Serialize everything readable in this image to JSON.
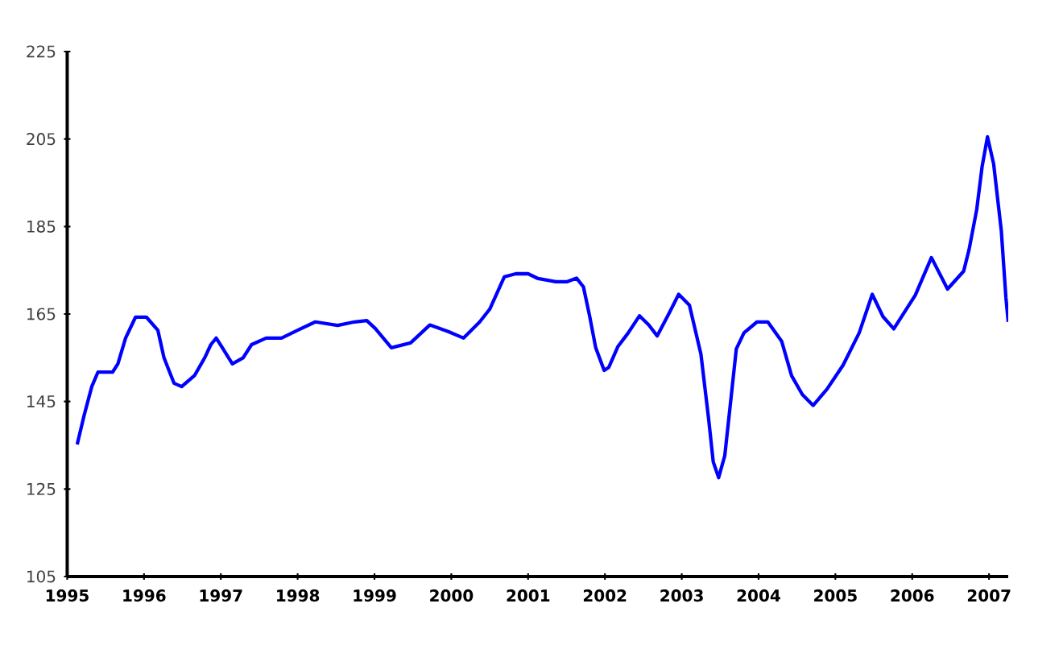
{
  "chart_data": {
    "type": "line",
    "xlim": [
      1995,
      2007.25
    ],
    "ylim": [
      105,
      225
    ],
    "xticks": [
      1995,
      1996,
      1997,
      1998,
      1999,
      2000,
      2001,
      2002,
      2003,
      2004,
      2005,
      2006,
      2007
    ],
    "yticks": [
      105,
      125,
      145,
      165,
      185,
      205,
      225
    ],
    "grid": false,
    "marker": "none",
    "line_style": "solid",
    "series": [
      {
        "color": "#0000ff",
        "x": [
          1995.13,
          1995.22,
          1995.32,
          1995.4,
          1995.59,
          1995.66,
          1995.76,
          1995.89,
          1996.03,
          1996.18,
          1996.26,
          1996.39,
          1996.49,
          1996.66,
          1996.79,
          1996.87,
          1996.94,
          1997.02,
          1997.15,
          1997.29,
          1997.4,
          1997.59,
          1997.79,
          1998.0,
          1998.23,
          1998.52,
          1998.74,
          1998.9,
          1999.01,
          1999.22,
          1999.47,
          1999.72,
          1999.96,
          2000.16,
          2000.37,
          2000.5,
          2000.69,
          2000.84,
          2001.0,
          2001.13,
          2001.36,
          2001.51,
          2001.63,
          2001.72,
          2001.8,
          2001.88,
          2001.99,
          2002.05,
          2002.17,
          2002.3,
          2002.45,
          2002.57,
          2002.68,
          2002.83,
          2002.96,
          2003.1,
          2003.25,
          2003.35,
          2003.41,
          2003.48,
          2003.56,
          2003.62,
          2003.71,
          2003.81,
          2003.98,
          2004.12,
          2004.3,
          2004.43,
          2004.57,
          2004.71,
          2004.89,
          2005.1,
          2005.31,
          2005.48,
          2005.62,
          2005.76,
          2006.04,
          2006.25,
          2006.46,
          2006.67,
          2006.74,
          2006.84,
          2006.91,
          2006.98,
          2007.06,
          2007.16,
          2007.22,
          2007.25
        ],
        "values": [
          135.2,
          141.8,
          148.4,
          151.7,
          151.7,
          153.6,
          159.5,
          164.3,
          164.3,
          161.3,
          155,
          149.2,
          148.4,
          151,
          155,
          158,
          159.5,
          157.3,
          153.6,
          155,
          158,
          159.5,
          159.5,
          161.3,
          163.2,
          162.4,
          163.2,
          163.5,
          161.7,
          157.3,
          158.4,
          162.5,
          161,
          159.5,
          163.2,
          166.1,
          173.5,
          174.2,
          174.2,
          173.1,
          172.4,
          172.4,
          173.2,
          171.2,
          164.6,
          157.3,
          152.1,
          152.8,
          157.6,
          160.6,
          164.6,
          162.5,
          160,
          165,
          169.5,
          167,
          155.8,
          141,
          131.2,
          127.6,
          132.6,
          142.3,
          157,
          160.7,
          163.2,
          163.2,
          158.8,
          150.9,
          146.6,
          144.1,
          147.8,
          153.3,
          160.7,
          169.5,
          164.4,
          161.6,
          169.3,
          177.9,
          170.7,
          174.8,
          179.7,
          188.9,
          198.7,
          205.5,
          199.3,
          184,
          168.7,
          163.2
        ]
      }
    ]
  }
}
